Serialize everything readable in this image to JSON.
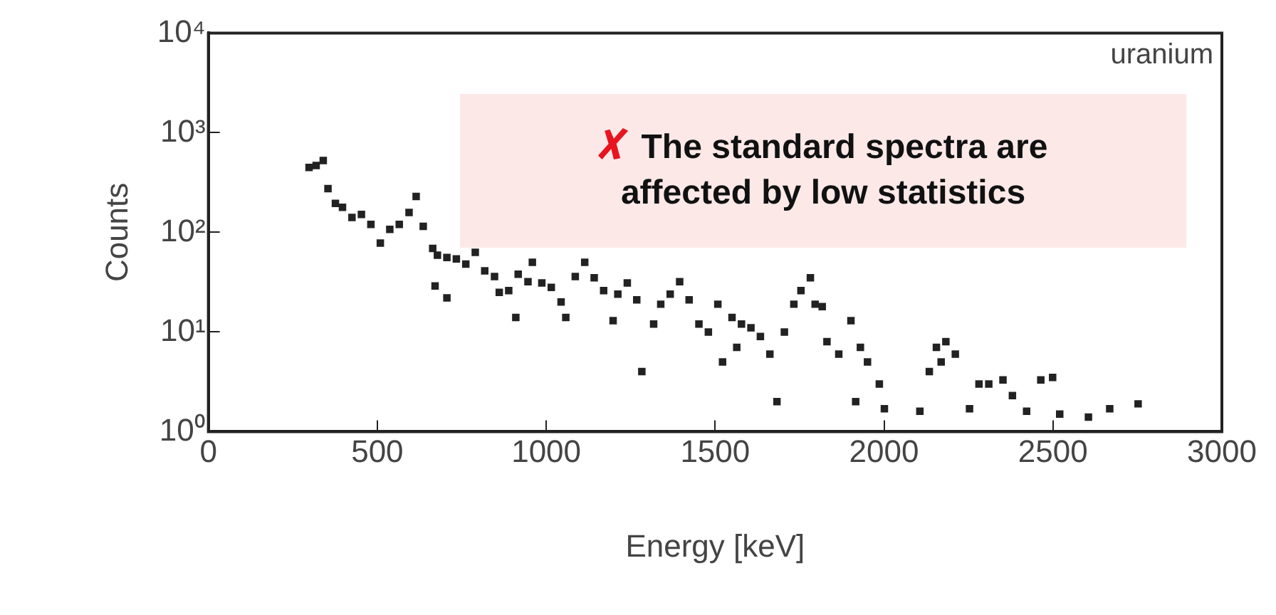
{
  "chart_data": {
    "type": "scatter",
    "xlabel": "Energy [keV]",
    "ylabel": "Counts",
    "log": "y",
    "grid": false,
    "legend": false,
    "marker": "square",
    "xlim": [
      0,
      3000
    ],
    "xticks": [
      0,
      500,
      1000,
      1500,
      2000,
      2500,
      3000
    ],
    "ylim": [
      1,
      10000
    ],
    "yticks": [
      {
        "value": 1,
        "label": "10⁰"
      },
      {
        "value": 10,
        "label": "10¹"
      },
      {
        "value": 100,
        "label": "10²"
      },
      {
        "value": 1000,
        "label": "10³"
      },
      {
        "value": 10000,
        "label": "10⁴"
      }
    ],
    "annotations": [
      "uranium",
      "The standard spectra are affected by low statistics"
    ],
    "series": [
      {
        "color": "#222222",
        "x": [
          298,
          319,
          340,
          354,
          376,
          397,
          425,
          453,
          481,
          509,
          537,
          565,
          594,
          615,
          636,
          664,
          678,
          706,
          671,
          706,
          734,
          762,
          790,
          818,
          847,
          861,
          889,
          910,
          917,
          946,
          959,
          987,
          1015,
          1044,
          1058,
          1086,
          1114,
          1142,
          1170,
          1198,
          1212,
          1240,
          1268,
          1283,
          1318,
          1339,
          1367,
          1395,
          1423,
          1452,
          1480,
          1508,
          1522,
          1550,
          1564,
          1578,
          1606,
          1634,
          1662,
          1683,
          1705,
          1733,
          1754,
          1782,
          1796,
          1817,
          1831,
          1866,
          1902,
          1916,
          1930,
          1951,
          1986,
          2001,
          2106,
          2134,
          2155,
          2169,
          2183,
          2211,
          2253,
          2281,
          2310,
          2352,
          2380,
          2422,
          2464,
          2499,
          2520,
          2605,
          2668,
          2752
        ],
        "values": [
          447,
          468,
          525,
          275,
          195,
          178,
          141,
          151,
          120,
          78,
          107,
          120,
          158,
          229,
          115,
          69,
          59,
          56,
          29,
          22,
          54,
          48,
          63,
          41,
          36,
          25,
          26,
          14,
          38,
          32,
          50,
          31,
          28,
          20,
          14,
          36,
          50,
          35,
          26,
          13,
          24,
          31,
          21,
          4,
          12,
          19,
          24,
          32,
          21,
          12,
          10,
          19,
          5,
          14,
          7,
          12,
          11,
          9,
          6,
          2,
          10,
          19,
          26,
          35,
          19,
          18,
          8,
          6,
          13,
          2,
          7,
          5,
          3,
          1.7,
          1.6,
          4,
          7,
          5,
          8,
          6,
          1.7,
          3,
          3,
          3.3,
          2.3,
          1.6,
          3.3,
          3.5,
          1.5,
          1.4,
          1.7,
          1.9
        ]
      }
    ]
  }
}
